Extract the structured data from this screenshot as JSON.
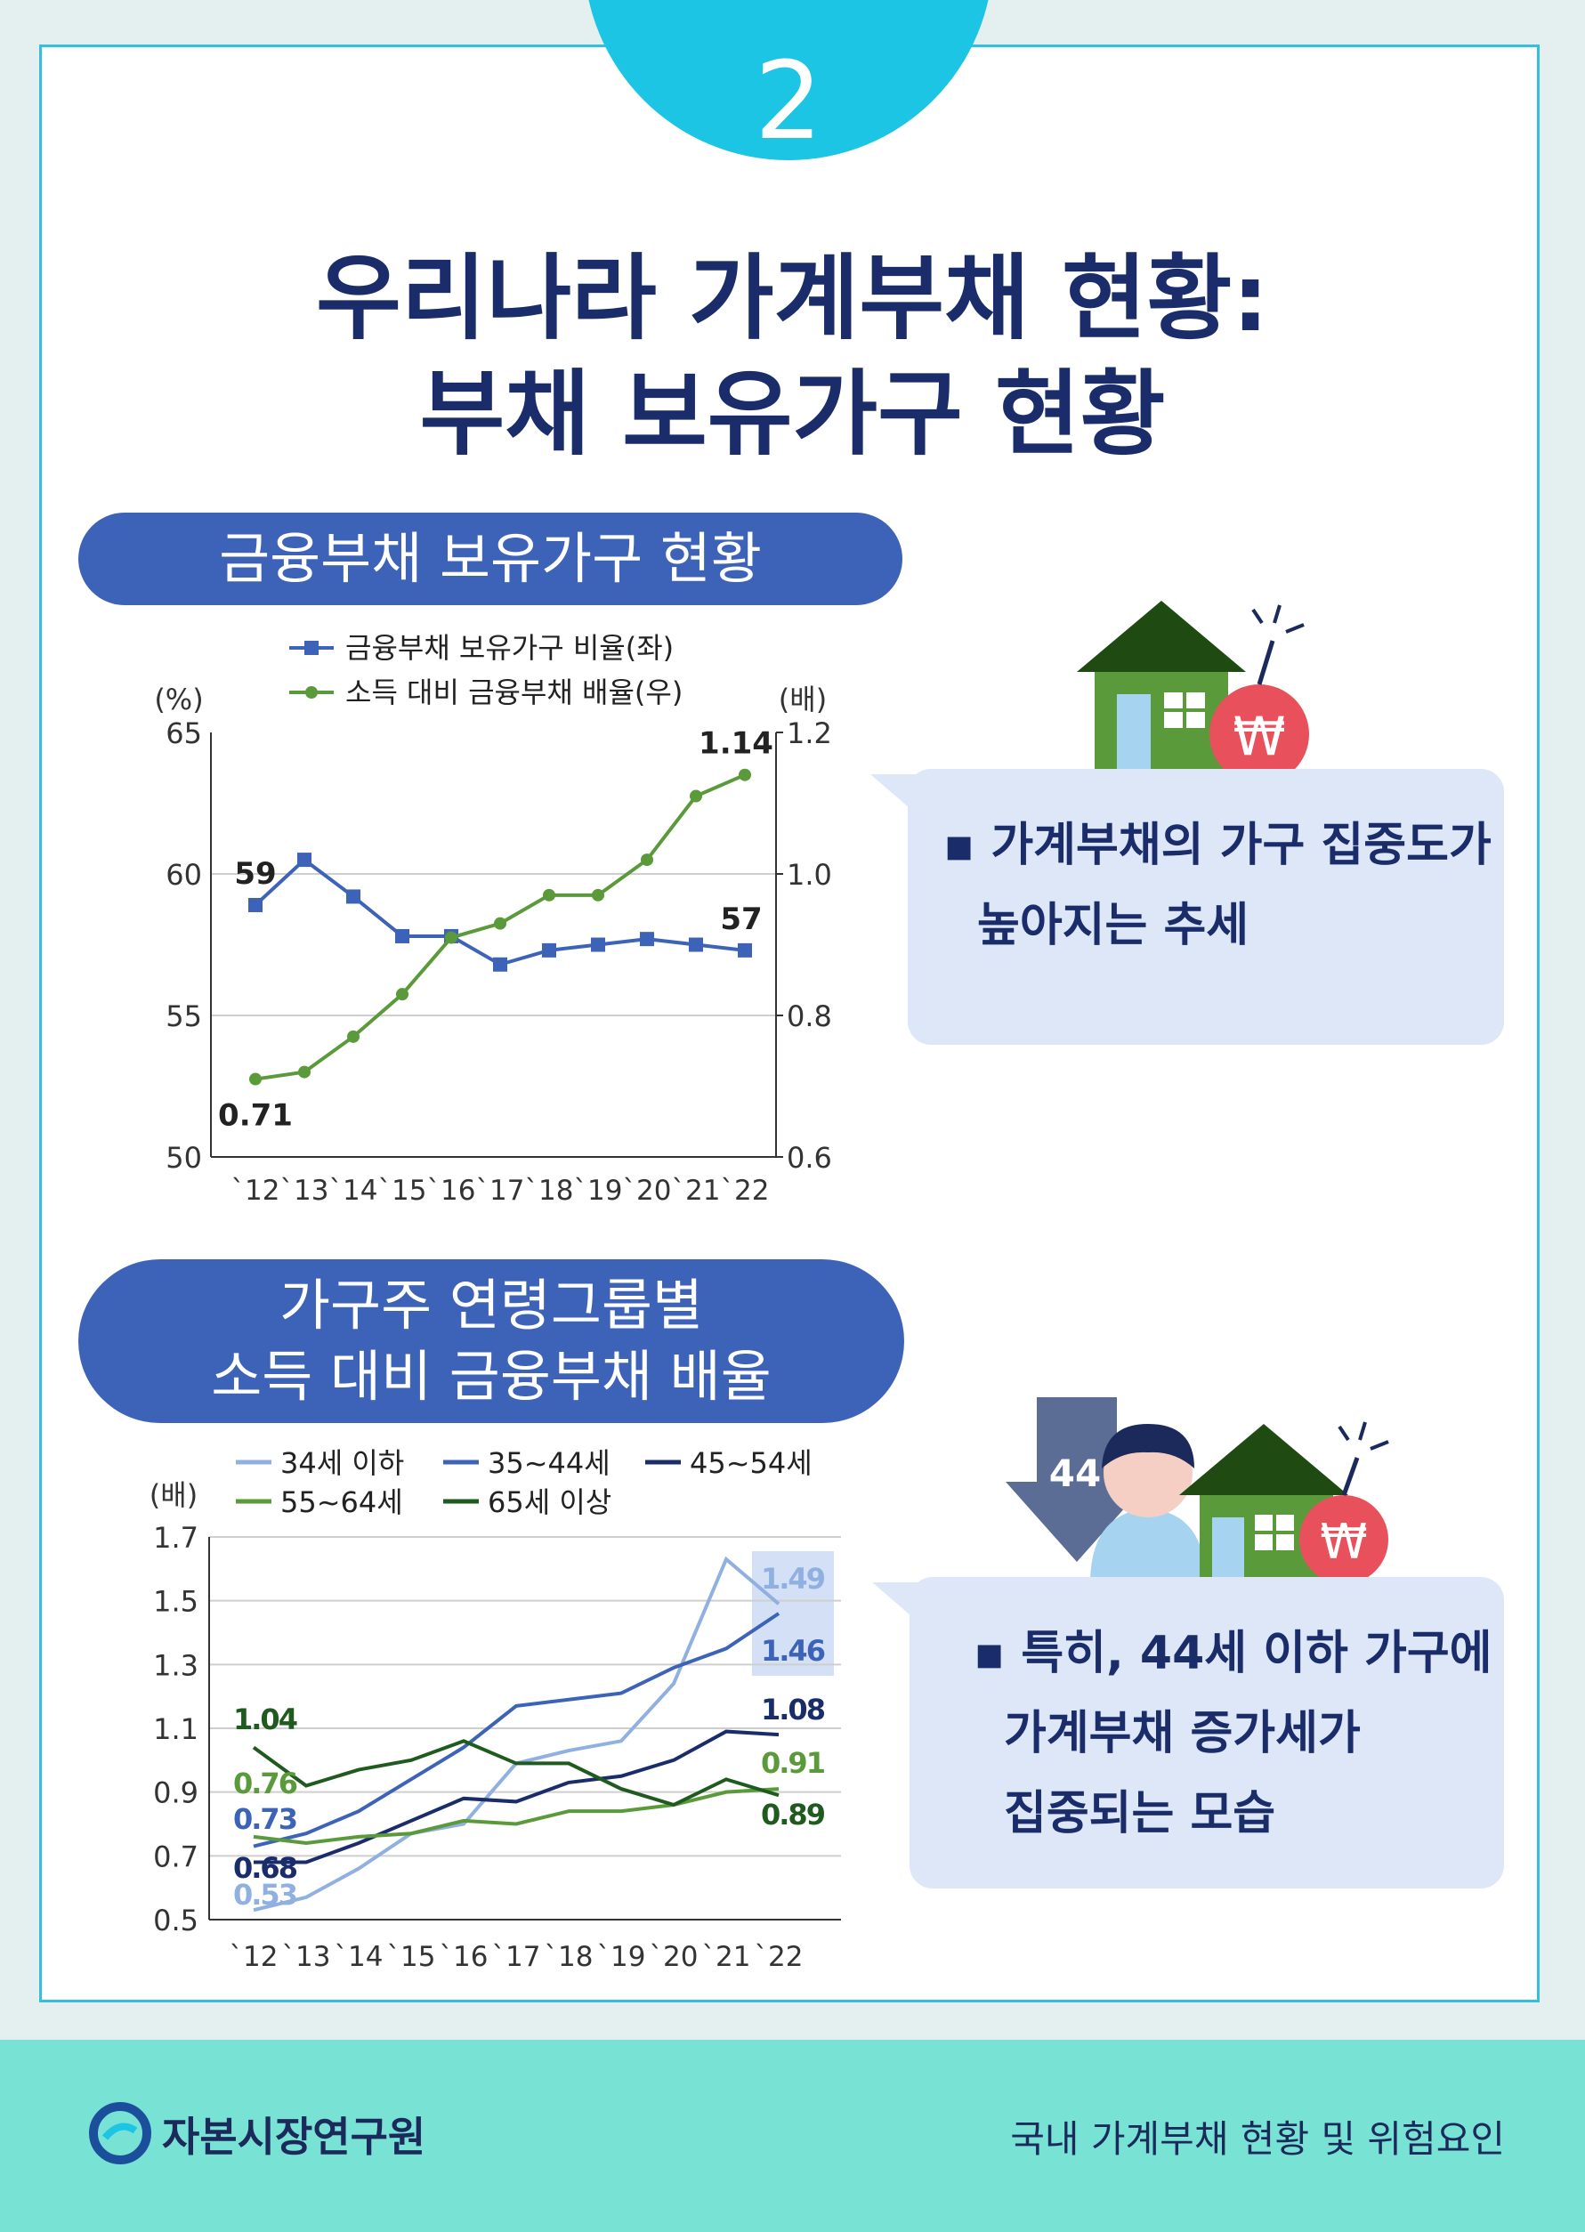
{
  "page": {
    "number": "2",
    "title_line1": "우리나라 가계부채 현황:",
    "title_line2": "부채 보유가구 현황"
  },
  "section1": {
    "heading": "금융부채 보유가구 현황",
    "callout_line1": "▪ 가계부채의 가구 집중도가",
    "callout_line2": "높아지는 추세"
  },
  "section2": {
    "heading_line1": "가구주 연령그룹별",
    "heading_line2": "소득 대비 금융부채 배율",
    "callout_line1": "▪ 특히, 44세 이하 가구에",
    "callout_line2": "가계부채 증가세가",
    "callout_line3": "집중되는 모습",
    "age_badge": "44"
  },
  "footer": {
    "logo_text": "자본시장연구원",
    "report_title": "국내 가계부채 현황 및 위험요인"
  },
  "icons": [
    "house-icon",
    "bomb-icon",
    "won-icon",
    "down-arrow-icon",
    "person-icon",
    "logo-icon"
  ],
  "colors": {
    "accent": "#1cc5e3",
    "pill": "#3d63b9",
    "bubble": "#dde7f8",
    "footer": "#78e2d4",
    "series_blue": "#3d63b9",
    "series_green": "#5a9a3a",
    "series_light_blue": "#8fb0e0",
    "series_navy": "#1a2d6a",
    "series_dark_green": "#1f5a1f",
    "bomb": "#e8505b",
    "house_roof": "#1f4a12",
    "house_wall": "#5a9a3a"
  },
  "chart_data": [
    {
      "type": "line",
      "categories": [
        "`12",
        "`13",
        "`14",
        "`15",
        "`16",
        "`17",
        "`18",
        "`19",
        "`20",
        "`21",
        "`22"
      ],
      "left_axis_label": "(%)",
      "right_axis_label": "(배)",
      "left_ylim": [
        50,
        65
      ],
      "left_ticks": [
        "50",
        "55",
        "60",
        "65"
      ],
      "right_ylim": [
        0.6,
        1.2
      ],
      "right_ticks": [
        "0.6",
        "0.8",
        "1.0",
        "1.2"
      ],
      "legend_placement": "top",
      "series": [
        {
          "name": "금융부채 보유가구 비율(좌)",
          "axis": "left",
          "marker": "square",
          "values": [
            58.9,
            60.5,
            59.2,
            57.8,
            57.8,
            56.8,
            57.3,
            57.5,
            57.7,
            57.5,
            57.3
          ],
          "labels": {
            "first": "59",
            "last": "57"
          }
        },
        {
          "name": "소득 대비 금융부채 배율(우)",
          "axis": "right",
          "marker": "circle",
          "values": [
            0.71,
            0.72,
            0.77,
            0.83,
            0.91,
            0.93,
            0.97,
            0.97,
            1.02,
            1.11,
            1.14
          ],
          "labels": {
            "first": "0.71",
            "last": "1.14"
          }
        }
      ]
    },
    {
      "type": "line",
      "categories": [
        "`12",
        "`13",
        "`14",
        "`15",
        "`16",
        "`17",
        "`18",
        "`19",
        "`20",
        "`21",
        "`22"
      ],
      "ylabel": "(배)",
      "ylim": [
        0.5,
        1.7
      ],
      "y_ticks": [
        "0.5",
        "0.7",
        "0.9",
        "1.1",
        "1.3",
        "1.5",
        "1.7"
      ],
      "grid": true,
      "legend_placement": "top",
      "series": [
        {
          "name": "34세 이하",
          "values": [
            0.53,
            0.57,
            0.66,
            0.77,
            0.8,
            0.99,
            1.03,
            1.06,
            1.24,
            1.63,
            1.49
          ],
          "labels": {
            "first": "0.53",
            "last": "1.49"
          }
        },
        {
          "name": "35~44세",
          "values": [
            0.73,
            0.77,
            0.84,
            0.94,
            1.04,
            1.17,
            1.19,
            1.21,
            1.29,
            1.35,
            1.46
          ],
          "labels": {
            "first": "0.73",
            "last": "1.46"
          }
        },
        {
          "name": "45~54세",
          "values": [
            0.68,
            0.68,
            0.74,
            0.81,
            0.88,
            0.87,
            0.93,
            0.95,
            1.0,
            1.09,
            1.08
          ],
          "labels": {
            "first": "0.68",
            "last": "1.08"
          }
        },
        {
          "name": "55~64세",
          "values": [
            0.76,
            0.74,
            0.76,
            0.77,
            0.81,
            0.8,
            0.84,
            0.84,
            0.86,
            0.9,
            0.91
          ],
          "labels": {
            "first": "0.76",
            "last": "0.91"
          }
        },
        {
          "name": "65세 이상",
          "values": [
            1.04,
            0.92,
            0.97,
            1.0,
            1.06,
            0.99,
            0.99,
            0.91,
            0.86,
            0.94,
            0.89
          ],
          "labels": {
            "first": "1.04",
            "last": "0.89"
          }
        }
      ]
    }
  ]
}
